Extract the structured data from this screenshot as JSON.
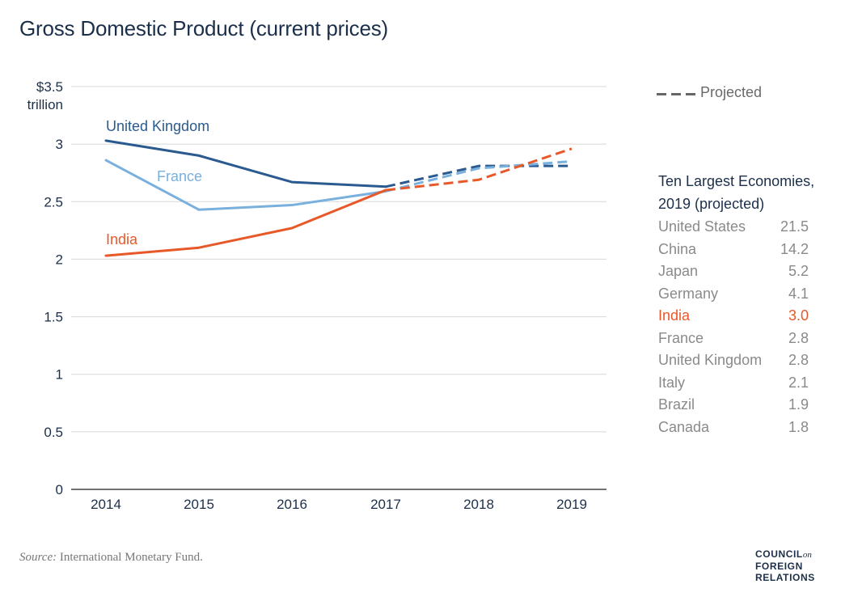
{
  "title": "Gross Domestic Product (current prices)",
  "legend": {
    "projected_label": "Projected"
  },
  "panel": {
    "title_line1": "Ten Largest Economies,",
    "title_line2": "2019 (projected)",
    "rows": [
      {
        "name": "United States",
        "value": "21.5",
        "highlight": false
      },
      {
        "name": "China",
        "value": "14.2",
        "highlight": false
      },
      {
        "name": "Japan",
        "value": "5.2",
        "highlight": false
      },
      {
        "name": "Germany",
        "value": "4.1",
        "highlight": false
      },
      {
        "name": "India",
        "value": "3.0",
        "highlight": true
      },
      {
        "name": "France",
        "value": "2.8",
        "highlight": false
      },
      {
        "name": "United Kingdom",
        "value": "2.8",
        "highlight": false
      },
      {
        "name": "Italy",
        "value": "2.1",
        "highlight": false
      },
      {
        "name": "Brazil",
        "value": "1.9",
        "highlight": false
      },
      {
        "name": "Canada",
        "value": "1.8",
        "highlight": false
      }
    ]
  },
  "source": {
    "label": "Source:",
    "text": " International Monetary Fund."
  },
  "logo": {
    "line1": "COUNCIL",
    "on": "on",
    "line2": "FOREIGN",
    "line3": "RELATIONS"
  },
  "chart_data": {
    "type": "line",
    "x": [
      2014,
      2015,
      2016,
      2017,
      2018,
      2019
    ],
    "x_tick_labels": [
      "2014",
      "2015",
      "2016",
      "2017",
      "2018",
      "2019"
    ],
    "ylim": [
      0,
      3.5
    ],
    "y_ticks": [
      0,
      0.5,
      1,
      1.5,
      2,
      2.5,
      3,
      3.5
    ],
    "y_tick_labels": [
      "0",
      "0.5",
      "1",
      "1.5",
      "2",
      "2.5",
      "3",
      "$3.5"
    ],
    "y_unit_label": "trillion",
    "projected_from": 2017,
    "grid": true,
    "series": [
      {
        "name": "United Kingdom",
        "color": "#2a5a8f",
        "values": [
          3.03,
          2.9,
          2.67,
          2.63,
          2.81,
          2.81
        ]
      },
      {
        "name": "France",
        "color": "#7ab0de",
        "values": [
          2.86,
          2.43,
          2.47,
          2.59,
          2.79,
          2.85
        ]
      },
      {
        "name": "India",
        "color": "#e8592a",
        "values": [
          2.03,
          2.1,
          2.27,
          2.6,
          2.69,
          2.96
        ]
      }
    ]
  }
}
